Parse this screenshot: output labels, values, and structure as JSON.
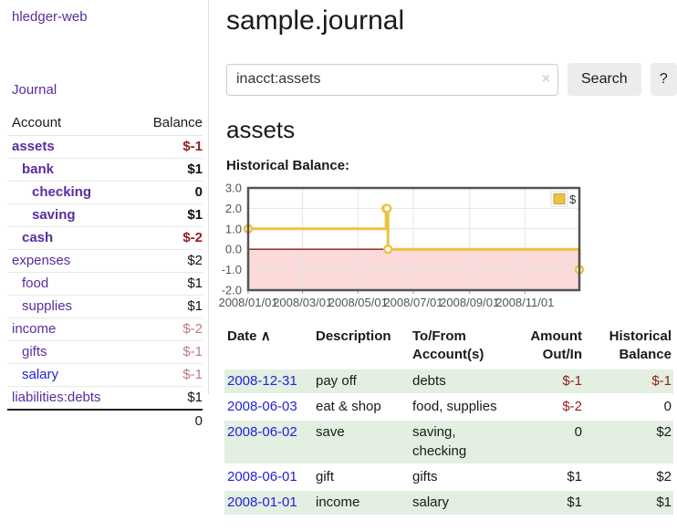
{
  "sidebar": {
    "app_title": "hledger-web",
    "journal_link": "Journal",
    "accounts_table": {
      "headers": {
        "account": "Account",
        "balance": "Balance"
      },
      "rows": [
        {
          "name": "assets",
          "balance": "$-1",
          "indent": 0,
          "bold": true,
          "link_color": "purple",
          "balance_style": "negative"
        },
        {
          "name": "bank",
          "balance": "$1",
          "indent": 1,
          "bold": true,
          "link_color": "purple",
          "balance_style": "normal"
        },
        {
          "name": "checking",
          "balance": "0",
          "indent": 2,
          "bold": true,
          "link_color": "purple",
          "balance_style": "normal"
        },
        {
          "name": "saving",
          "balance": "$1",
          "indent": 2,
          "bold": true,
          "link_color": "purple",
          "balance_style": "normal"
        },
        {
          "name": "cash",
          "balance": "$-2",
          "indent": 1,
          "bold": true,
          "link_color": "purple",
          "balance_style": "negative"
        },
        {
          "name": "expenses",
          "balance": "$2",
          "indent": 0,
          "bold": false,
          "link_color": "purple",
          "balance_style": "normal"
        },
        {
          "name": "food",
          "balance": "$1",
          "indent": 1,
          "bold": false,
          "link_color": "purple",
          "balance_style": "normal"
        },
        {
          "name": "supplies",
          "balance": "$1",
          "indent": 1,
          "bold": false,
          "link_color": "purple",
          "balance_style": "normal"
        },
        {
          "name": "income",
          "balance": "$-2",
          "indent": 0,
          "bold": false,
          "link_color": "purple",
          "balance_style": "negative-muted"
        },
        {
          "name": "gifts",
          "balance": "$-1",
          "indent": 1,
          "bold": false,
          "link_color": "purple",
          "balance_style": "negative-muted"
        },
        {
          "name": "salary",
          "balance": "$-1",
          "indent": 1,
          "bold": false,
          "link_color": "blue",
          "balance_style": "negative-muted"
        },
        {
          "name": "liabilities:debts",
          "balance": "$1",
          "indent": 0,
          "bold": false,
          "link_color": "purple",
          "balance_style": "normal"
        }
      ],
      "total": "0"
    }
  },
  "header": {
    "title": "sample.journal"
  },
  "search": {
    "value": "inacct:assets",
    "clear_icon": "×",
    "button_label": "Search",
    "help_label": "?"
  },
  "account_page": {
    "title": "assets",
    "chart_label": "Historical Balance:"
  },
  "chart_data": {
    "type": "line",
    "step": true,
    "title": "Historical Balance:",
    "series": [
      {
        "name": "$",
        "color": "#edc240",
        "points": [
          {
            "date": "2008-01-01",
            "day": 0,
            "value": 1
          },
          {
            "date": "2008-06-01",
            "day": 152,
            "value": 2
          },
          {
            "date": "2008-06-02",
            "day": 153,
            "value": 2
          },
          {
            "date": "2008-06-03",
            "day": 154,
            "value": 0
          },
          {
            "date": "2008-12-31",
            "day": 365,
            "value": -1
          }
        ]
      }
    ],
    "x_ticks": [
      {
        "label": "2008/01/01",
        "day": 0
      },
      {
        "label": "2008/03/01",
        "day": 60
      },
      {
        "label": "2008/05/01",
        "day": 121
      },
      {
        "label": "2008/07/01",
        "day": 182
      },
      {
        "label": "2008/09/01",
        "day": 244
      },
      {
        "label": "2008/11/01",
        "day": 305
      }
    ],
    "x_range_days": [
      0,
      365
    ],
    "y_ticks": [
      3,
      2,
      1,
      0,
      -1,
      -2
    ],
    "ylim": [
      -2,
      3
    ],
    "legend": {
      "label": "$",
      "position": "top-right"
    },
    "colors": {
      "negative_region_fill": "#fbdada",
      "zero_line": "#8b1a1a",
      "grid": "#e5e5e5",
      "border": "#545454",
      "legend_swatch_border": "#c9a12d"
    },
    "grid": true
  },
  "register_table": {
    "headers": {
      "date": "Date",
      "sort_icon": "∧",
      "description": "Description",
      "accounts": "To/From Account(s)",
      "amount": "Amount Out/In",
      "balance": "Historical Balance"
    },
    "rows": [
      {
        "date": "2008-12-31",
        "description": "pay off",
        "accounts": "debts",
        "amount": "$-1",
        "amount_negative": true,
        "balance": "$-1",
        "balance_negative": true
      },
      {
        "date": "2008-06-03",
        "description": "eat & shop",
        "accounts": "food, supplies",
        "amount": "$-2",
        "amount_negative": true,
        "balance": "0",
        "balance_negative": false
      },
      {
        "date": "2008-06-02",
        "description": "save",
        "accounts": "saving, checking",
        "amount": "0",
        "amount_negative": false,
        "balance": "$2",
        "balance_negative": false
      },
      {
        "date": "2008-06-01",
        "description": "gift",
        "accounts": "gifts",
        "amount": "$1",
        "amount_negative": false,
        "balance": "$2",
        "balance_negative": false
      },
      {
        "date": "2008-01-01",
        "description": "income",
        "accounts": "salary",
        "amount": "$1",
        "amount_negative": false,
        "balance": "$1",
        "balance_negative": false
      }
    ]
  }
}
